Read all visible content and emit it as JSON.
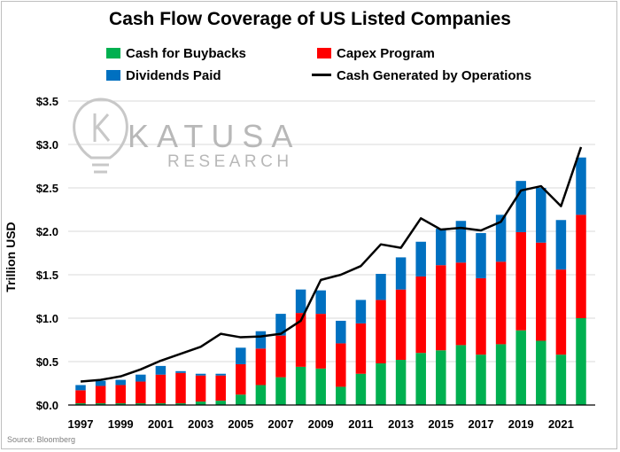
{
  "chart_data": {
    "type": "bar",
    "stacked": true,
    "title": "Cash Flow Coverage of US Listed Companies",
    "ylabel": "Trillion USD",
    "xlabel": "",
    "ylim": [
      0,
      3.5
    ],
    "yticks": [
      "$0.0",
      "$0.5",
      "$1.0",
      "$1.5",
      "$2.0",
      "$2.5",
      "$3.0",
      "$3.5"
    ],
    "ytick_values": [
      0,
      0.5,
      1.0,
      1.5,
      2.0,
      2.5,
      3.0,
      3.5
    ],
    "x": [
      1997,
      1998,
      1999,
      2000,
      2001,
      2002,
      2003,
      2004,
      2005,
      2006,
      2007,
      2008,
      2009,
      2010,
      2011,
      2012,
      2013,
      2014,
      2015,
      2016,
      2017,
      2018,
      2019,
      2020,
      2021,
      2022
    ],
    "xtick_labels": [
      "1997",
      "1999",
      "2001",
      "2003",
      "2005",
      "2007",
      "2009",
      "2011",
      "2013",
      "2015",
      "2017",
      "2019",
      "2021"
    ],
    "series": [
      {
        "name": "Cash for Buybacks",
        "color": "#00b050",
        "values": [
          0.02,
          0.02,
          0.02,
          0.02,
          0.02,
          0.02,
          0.04,
          0.05,
          0.12,
          0.23,
          0.32,
          0.44,
          0.42,
          0.21,
          0.36,
          0.48,
          0.52,
          0.6,
          0.63,
          0.69,
          0.58,
          0.7,
          0.86,
          0.74,
          0.58,
          1.0
        ]
      },
      {
        "name": "Capex Program",
        "color": "#ff0000",
        "values": [
          0.15,
          0.2,
          0.21,
          0.25,
          0.33,
          0.35,
          0.3,
          0.29,
          0.35,
          0.42,
          0.48,
          0.62,
          0.63,
          0.5,
          0.58,
          0.73,
          0.81,
          0.88,
          0.98,
          0.95,
          0.88,
          0.95,
          1.13,
          1.13,
          0.98,
          1.19
        ]
      },
      {
        "name": "Dividends Paid",
        "color": "#0070c0",
        "values": [
          0.06,
          0.06,
          0.06,
          0.08,
          0.1,
          0.02,
          0.02,
          0.02,
          0.19,
          0.2,
          0.25,
          0.27,
          0.27,
          0.26,
          0.27,
          0.3,
          0.37,
          0.4,
          0.42,
          0.48,
          0.52,
          0.54,
          0.59,
          0.63,
          0.57,
          0.66
        ]
      }
    ],
    "line_series": {
      "name": "Cash Generated by Operations",
      "color": "#000000",
      "values": [
        0.27,
        0.29,
        0.33,
        0.41,
        0.51,
        0.59,
        0.67,
        0.82,
        0.78,
        0.79,
        0.82,
        0.97,
        1.44,
        1.5,
        1.6,
        1.85,
        1.81,
        2.15,
        2.02,
        2.04,
        2.01,
        2.11,
        2.47,
        2.52,
        2.29,
        2.97
      ]
    },
    "legend": "top",
    "grid": true
  },
  "legend_labels": {
    "buybacks": "Cash for Buybacks",
    "capex": "Capex Program",
    "dividends": "Dividends Paid",
    "operations": "Cash Generated by Operations"
  },
  "watermark": {
    "brand": "KATUSA",
    "sub": "RESEARCH"
  },
  "source": "Source: Bloomberg"
}
